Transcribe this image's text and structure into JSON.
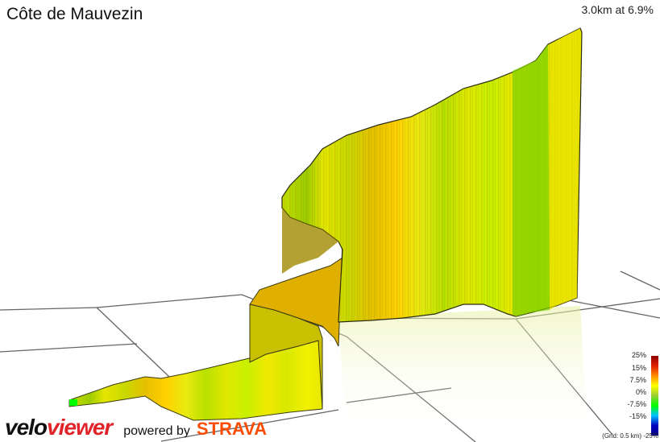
{
  "segment": {
    "title": "Côte de Mauvezin",
    "summary": "3.0km at 6.9%"
  },
  "legend": {
    "ticks": [
      "25%",
      "15%",
      "7.5%",
      "0%",
      "-7.5%",
      "-15%",
      "-25%"
    ],
    "grid_note": "(Grid: 0.5 km)",
    "colors": [
      "#8b0000",
      "#e02000",
      "#ff8c00",
      "#ffff00",
      "#9acd32",
      "#00ff00",
      "#00c0ff",
      "#0000c0",
      "#000080"
    ]
  },
  "branding": {
    "velo": "velo",
    "viewer": "viewer",
    "powered_by": "powered by",
    "strava": "STRAVA"
  }
}
